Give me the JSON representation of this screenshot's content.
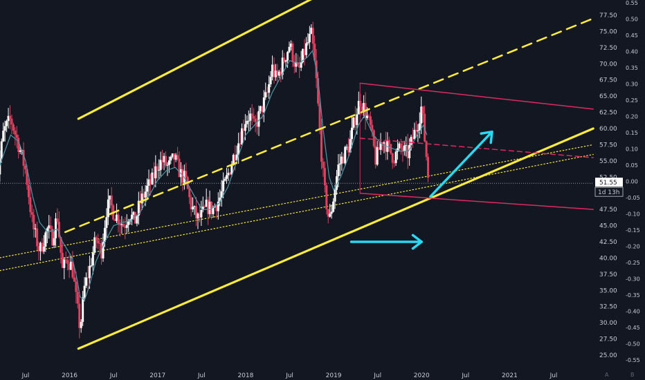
{
  "chart_data": {
    "type": "candlestick",
    "left_axis": {
      "ticks": [
        25.0,
        27.5,
        30.0,
        32.5,
        35.0,
        37.5,
        40.0,
        42.5,
        45.0,
        47.5,
        50.0,
        52.5,
        55.0,
        57.5,
        60.0,
        62.5,
        65.0,
        67.5,
        70.0,
        72.5,
        75.0,
        77.5
      ],
      "labels": [
        "25.00",
        "27.50",
        "30.00",
        "32.50",
        "35.00",
        "37.50",
        "40.00",
        "42.50",
        "45.00",
        "47.50",
        "50.00",
        "52.50",
        "55.00",
        "57.50",
        "60.00",
        "62.50",
        "65.00",
        "67.50",
        "70.00",
        "72.50",
        "75.00",
        "77.50"
      ]
    },
    "right_axis": {
      "labels": [
        "0.55",
        "0.50",
        "0.45",
        "0.40",
        "0.35",
        "0.30",
        "0.25",
        "0.20",
        "0.15",
        "0.10",
        "0.05",
        "0.00",
        "-0.05",
        "-0.10",
        "-0.15",
        "-0.20",
        "-0.25",
        "-0.30",
        "-0.35",
        "-0.40",
        "-0.45",
        "-0.50",
        "-0.55"
      ]
    },
    "x_axis": {
      "labels": [
        "Jul",
        "2016",
        "Jul",
        "2017",
        "Jul",
        "2018",
        "Jul",
        "2019",
        "Jul",
        "2020",
        "Jul",
        "2021",
        "Jul"
      ],
      "dates": [
        2015.5,
        2016.0,
        2016.5,
        2017.0,
        2017.5,
        2018.0,
        2018.5,
        2019.0,
        2019.5,
        2020.0,
        2020.5,
        2021.0,
        2021.5
      ]
    },
    "last_price": {
      "label": "51.55",
      "value": 51.55
    },
    "countdown": "1d 13h",
    "price_line_value": 51.55,
    "price_path": [
      [
        2015.15,
        49.5
      ],
      [
        2015.25,
        59.5
      ],
      [
        2015.33,
        61.5
      ],
      [
        2015.42,
        57.5
      ],
      [
        2015.5,
        53.5
      ],
      [
        2015.58,
        45.0
      ],
      [
        2015.66,
        41.0
      ],
      [
        2015.75,
        44.5
      ],
      [
        2015.8,
        43.0
      ],
      [
        2015.86,
        46.5
      ],
      [
        2015.92,
        38.0
      ],
      [
        2015.97,
        40.0
      ],
      [
        2016.03,
        38.5
      ],
      [
        2016.08,
        33.0
      ],
      [
        2016.12,
        29.0
      ],
      [
        2016.17,
        35.5
      ],
      [
        2016.22,
        38.0
      ],
      [
        2016.3,
        43.0
      ],
      [
        2016.36,
        41.0
      ],
      [
        2016.42,
        47.5
      ],
      [
        2016.46,
        48.5
      ],
      [
        2016.5,
        47.0
      ],
      [
        2016.56,
        46.0
      ],
      [
        2016.62,
        45.0
      ],
      [
        2016.68,
        47.0
      ],
      [
        2016.74,
        45.5
      ],
      [
        2016.8,
        48.5
      ],
      [
        2016.87,
        50.5
      ],
      [
        2016.94,
        52.0
      ],
      [
        2017.0,
        54.5
      ],
      [
        2017.06,
        55.0
      ],
      [
        2017.12,
        54.0
      ],
      [
        2017.19,
        55.5
      ],
      [
        2017.26,
        53.0
      ],
      [
        2017.32,
        52.0
      ],
      [
        2017.37,
        48.5
      ],
      [
        2017.45,
        46.0
      ],
      [
        2017.5,
        46.5
      ],
      [
        2017.56,
        48.0
      ],
      [
        2017.62,
        47.5
      ],
      [
        2017.7,
        49.0
      ],
      [
        2017.78,
        52.0
      ],
      [
        2017.86,
        55.5
      ],
      [
        2017.92,
        58.0
      ],
      [
        2018.0,
        61.5
      ],
      [
        2018.05,
        62.0
      ],
      [
        2018.1,
        60.0
      ],
      [
        2018.18,
        63.0
      ],
      [
        2018.25,
        65.5
      ],
      [
        2018.3,
        69.5
      ],
      [
        2018.35,
        67.5
      ],
      [
        2018.42,
        70.0
      ],
      [
        2018.5,
        73.0
      ],
      [
        2018.55,
        70.5
      ],
      [
        2018.6,
        68.5
      ],
      [
        2018.66,
        71.5
      ],
      [
        2018.7,
        73.0
      ],
      [
        2018.75,
        74.5
      ],
      [
        2018.8,
        68.0
      ],
      [
        2018.84,
        60.0
      ],
      [
        2018.89,
        51.0
      ],
      [
        2018.95,
        45.5
      ],
      [
        2019.0,
        49.5
      ],
      [
        2019.05,
        54.0
      ],
      [
        2019.1,
        55.5
      ],
      [
        2019.18,
        57.5
      ],
      [
        2019.25,
        62.0
      ],
      [
        2019.3,
        64.5
      ],
      [
        2019.35,
        63.0
      ],
      [
        2019.42,
        60.0
      ],
      [
        2019.48,
        55.0
      ],
      [
        2019.55,
        58.5
      ],
      [
        2019.6,
        57.5
      ],
      [
        2019.68,
        55.5
      ],
      [
        2019.76,
        57.0
      ],
      [
        2019.84,
        56.0
      ],
      [
        2019.9,
        58.5
      ],
      [
        2019.96,
        61.0
      ],
      [
        2020.0,
        63.5
      ],
      [
        2020.03,
        59.0
      ],
      [
        2020.06,
        55.0
      ],
      [
        2020.08,
        51.55
      ]
    ],
    "ma_path": [
      [
        2015.15,
        52.0
      ],
      [
        2015.25,
        56.0
      ],
      [
        2015.33,
        59.0
      ],
      [
        2015.42,
        58.0
      ],
      [
        2015.5,
        55.0
      ],
      [
        2015.58,
        49.5
      ],
      [
        2015.66,
        45.5
      ],
      [
        2015.75,
        44.0
      ],
      [
        2015.86,
        44.5
      ],
      [
        2015.92,
        42.5
      ],
      [
        2016.03,
        40.0
      ],
      [
        2016.08,
        37.0
      ],
      [
        2016.12,
        34.0
      ],
      [
        2016.17,
        33.5
      ],
      [
        2016.22,
        35.5
      ],
      [
        2016.3,
        39.5
      ],
      [
        2016.4,
        42.5
      ],
      [
        2016.5,
        45.0
      ],
      [
        2016.6,
        45.5
      ],
      [
        2016.7,
        45.8
      ],
      [
        2016.8,
        47.0
      ],
      [
        2016.9,
        49.5
      ],
      [
        2017.0,
        52.0
      ],
      [
        2017.1,
        53.5
      ],
      [
        2017.2,
        54.0
      ],
      [
        2017.3,
        52.5
      ],
      [
        2017.4,
        50.0
      ],
      [
        2017.5,
        47.5
      ],
      [
        2017.6,
        47.5
      ],
      [
        2017.7,
        48.5
      ],
      [
        2017.8,
        51.0
      ],
      [
        2017.9,
        55.0
      ],
      [
        2018.0,
        59.0
      ],
      [
        2018.1,
        60.5
      ],
      [
        2018.2,
        62.0
      ],
      [
        2018.3,
        65.5
      ],
      [
        2018.4,
        68.0
      ],
      [
        2018.5,
        70.5
      ],
      [
        2018.6,
        70.0
      ],
      [
        2018.7,
        71.0
      ],
      [
        2018.76,
        72.0
      ],
      [
        2018.82,
        68.0
      ],
      [
        2018.88,
        60.0
      ],
      [
        2018.95,
        52.5
      ],
      [
        2019.0,
        50.5
      ],
      [
        2019.08,
        52.5
      ],
      [
        2019.18,
        56.0
      ],
      [
        2019.28,
        60.5
      ],
      [
        2019.35,
        62.0
      ],
      [
        2019.45,
        59.0
      ],
      [
        2019.55,
        57.5
      ],
      [
        2019.65,
        57.0
      ],
      [
        2019.75,
        56.5
      ],
      [
        2019.85,
        56.5
      ],
      [
        2019.95,
        59.0
      ],
      [
        2020.02,
        60.5
      ],
      [
        2020.06,
        59.0
      ]
    ],
    "drawings": {
      "yellow_channel_upper": [
        [
          2016.1,
          61.5
        ],
        [
          2018.75,
          80.0
        ]
      ],
      "yellow_channel_lower": [
        [
          2016.1,
          26.0
        ],
        [
          2021.95,
          60.0
        ]
      ],
      "yellow_channel_mid_dashed": [
        [
          2015.95,
          44.0
        ],
        [
          2021.95,
          77.0
        ]
      ],
      "dotted_line_1": [
        [
          2015.0,
          39.5
        ],
        [
          2021.95,
          57.5
        ]
      ],
      "dotted_line_2": [
        [
          2015.0,
          37.5
        ],
        [
          2021.95,
          56.0
        ]
      ],
      "red_channel_upper": [
        [
          2019.3,
          67.0
        ],
        [
          2021.95,
          63.0
        ]
      ],
      "red_channel_mid_dashed": [
        [
          2019.3,
          58.5
        ],
        [
          2021.95,
          55.5
        ]
      ],
      "red_channel_lower": [
        [
          2019.3,
          50.0
        ],
        [
          2021.95,
          47.5
        ]
      ],
      "red_channel_left_edge": [
        [
          2019.3,
          50.0
        ],
        [
          2019.3,
          67.0
        ]
      ],
      "cyan_arrow_up": [
        [
          2020.1,
          49.5
        ],
        [
          2020.8,
          59.5
        ]
      ],
      "cyan_arrow_right": [
        [
          2019.2,
          42.5
        ],
        [
          2020.0,
          42.5
        ]
      ]
    },
    "colors": {
      "background": "#131722",
      "axis_text": "#c8ccd6",
      "up_candle": "#ffffff",
      "down_candle": "#e2405f",
      "moving_average": "#4e98a8",
      "yellow": "#ffeb3b",
      "red_channel": "#e0295f",
      "cyan_arrow": "#29d9f2",
      "price_line": "#9aa0ab",
      "price_label_bg": "#ffffff",
      "price_label_text": "#131722"
    }
  },
  "corner_buttons": {
    "auto": "A",
    "log": "B"
  }
}
